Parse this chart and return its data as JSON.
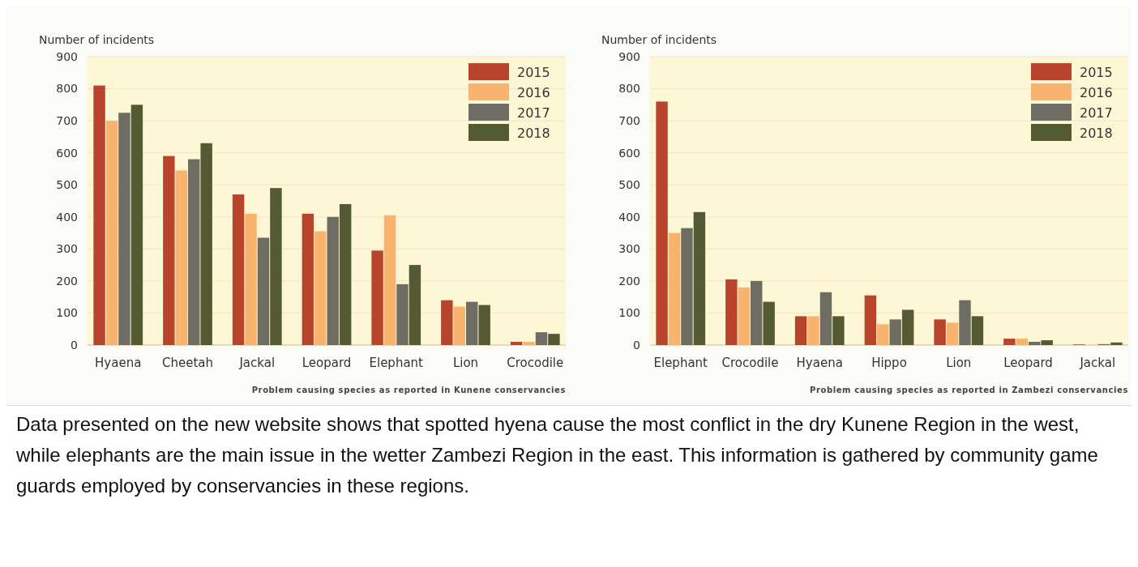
{
  "chart_data": [
    {
      "type": "bar",
      "ylabel": "Number of incidents",
      "categories": [
        "Hyaena",
        "Cheetah",
        "Jackal",
        "Leopard",
        "Elephant",
        "Lion",
        "Crocodile"
      ],
      "series": [
        {
          "name": "2015",
          "color": "#b8452b",
          "values": [
            810,
            590,
            470,
            410,
            295,
            140,
            10
          ]
        },
        {
          "name": "2016",
          "color": "#f8b46f",
          "values": [
            700,
            545,
            410,
            355,
            405,
            120,
            10
          ]
        },
        {
          "name": "2017",
          "color": "#6e6d64",
          "values": [
            725,
            580,
            335,
            400,
            190,
            135,
            40
          ]
        },
        {
          "name": "2018",
          "color": "#545a32",
          "values": [
            750,
            630,
            490,
            440,
            250,
            125,
            35
          ]
        }
      ],
      "ylim": [
        0,
        900
      ],
      "yticks": [
        0,
        100,
        200,
        300,
        400,
        500,
        600,
        700,
        800,
        900
      ],
      "grid": "y",
      "legend": "top right",
      "annotations": [
        "Problem causing species as reported in Kunene conservancies"
      ]
    },
    {
      "type": "bar",
      "ylabel": "Number of incidents",
      "categories": [
        "Elephant",
        "Crocodile",
        "Hyaena",
        "Hippo",
        "Lion",
        "Leopard",
        "Jackal"
      ],
      "series": [
        {
          "name": "2015",
          "color": "#b8452b",
          "values": [
            760,
            205,
            90,
            155,
            80,
            20,
            2
          ]
        },
        {
          "name": "2016",
          "color": "#f8b46f",
          "values": [
            350,
            180,
            90,
            65,
            70,
            20,
            null
          ]
        },
        {
          "name": "2017",
          "color": "#6e6d64",
          "values": [
            365,
            200,
            165,
            80,
            140,
            10,
            3
          ]
        },
        {
          "name": "2018",
          "color": "#545a32",
          "values": [
            415,
            135,
            90,
            110,
            90,
            15,
            8
          ]
        }
      ],
      "ylim": [
        0,
        900
      ],
      "yticks": [
        0,
        100,
        200,
        300,
        400,
        500,
        600,
        700,
        800,
        900
      ],
      "grid": "y",
      "legend": "top right",
      "annotations": [
        "Problem causing species as reported in Zambezi conservancies"
      ]
    },
    {
      "type": "other",
      "annotations": [
        "Data presented on the new website shows that spotted hyena cause the most conflict in the dry Kunene Region in the west, while elephants are the main issue in the wetter Zambezi Region in the east. This information is gathered by community game guards employed by conservancies in these regions."
      ]
    }
  ]
}
